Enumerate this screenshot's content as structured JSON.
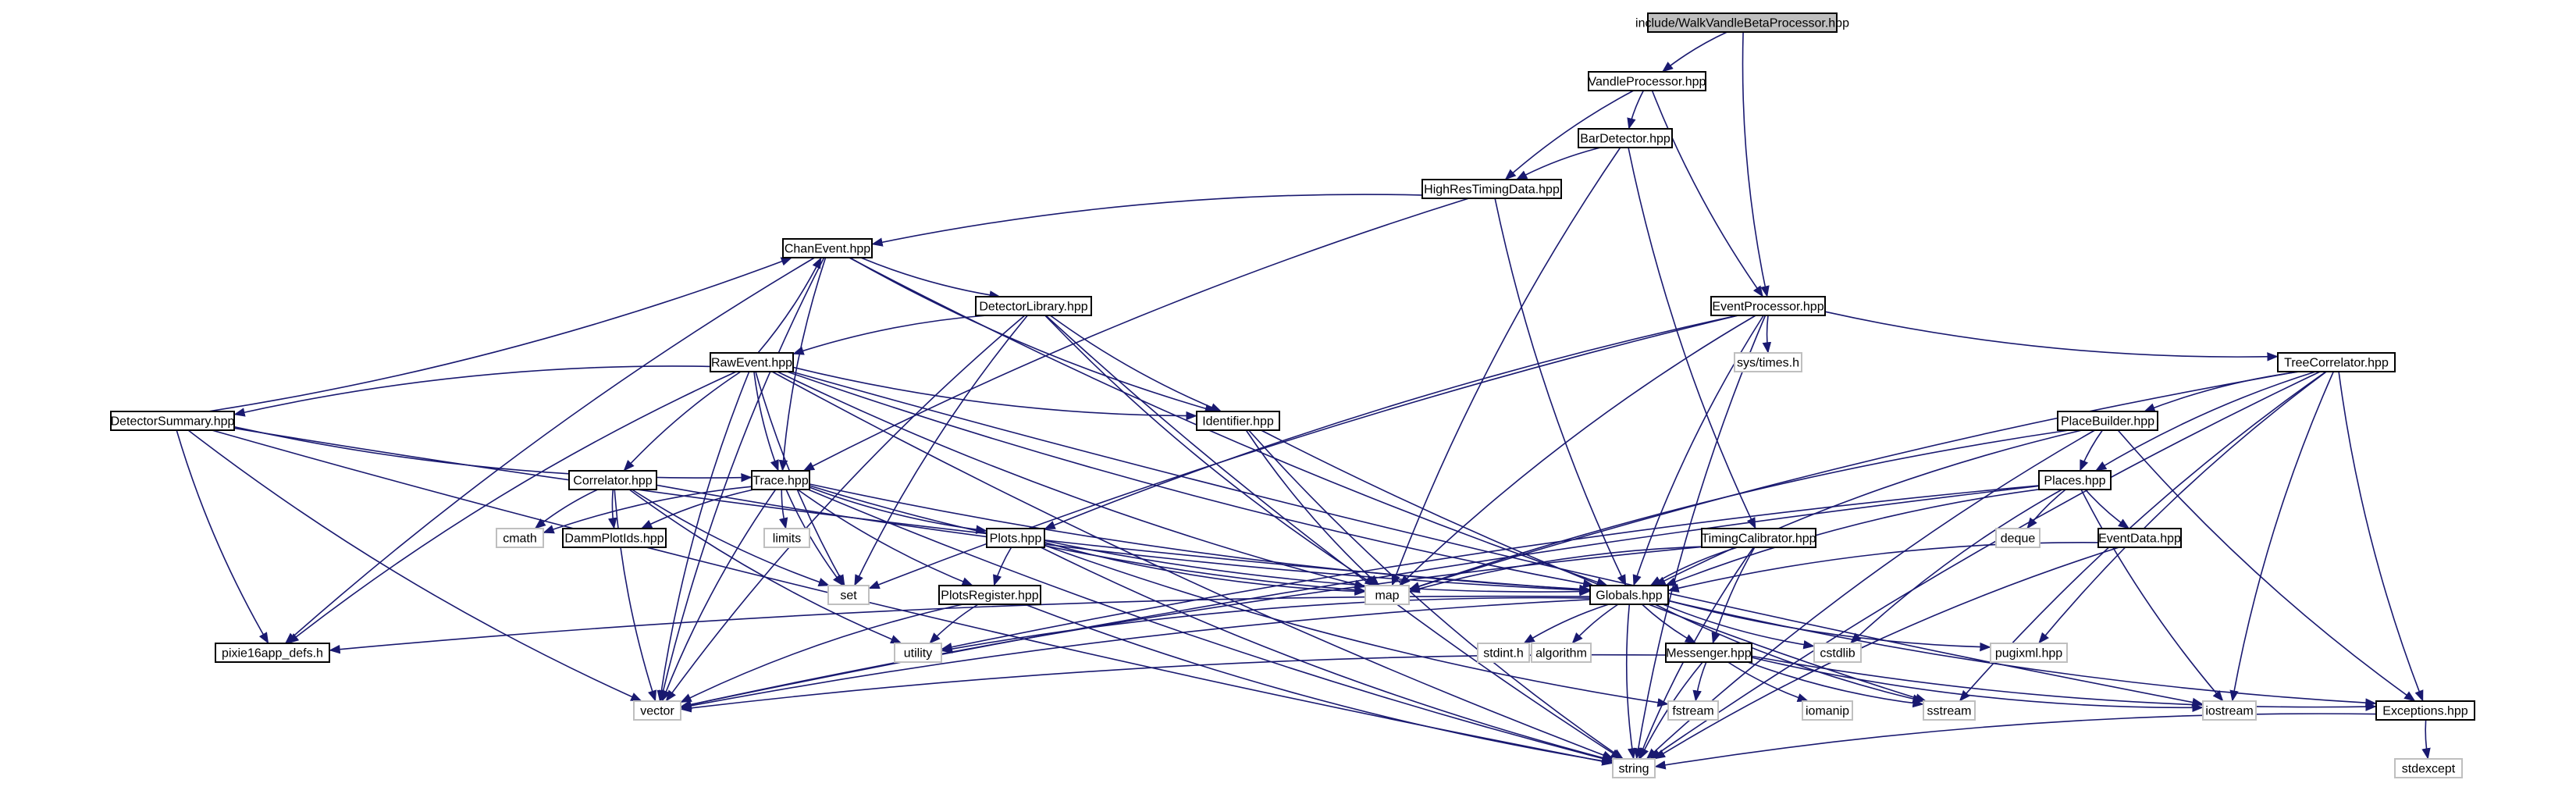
{
  "diagram": {
    "nodes": [
      {
        "id": "walk",
        "label": "include/WalkVandleBetaProcessor.hpp",
        "kind": "root"
      },
      {
        "id": "vandle",
        "label": "VandleProcessor.hpp",
        "kind": "header"
      },
      {
        "id": "bar",
        "label": "BarDetector.hpp",
        "kind": "header"
      },
      {
        "id": "hrt",
        "label": "HighResTimingData.hpp",
        "kind": "header"
      },
      {
        "id": "chan",
        "label": "ChanEvent.hpp",
        "kind": "header"
      },
      {
        "id": "detlib",
        "label": "DetectorLibrary.hpp",
        "kind": "header"
      },
      {
        "id": "raw",
        "label": "RawEvent.hpp",
        "kind": "header"
      },
      {
        "id": "detsum",
        "label": "DetectorSummary.hpp",
        "kind": "header"
      },
      {
        "id": "ident",
        "label": "Identifier.hpp",
        "kind": "header"
      },
      {
        "id": "evproc",
        "label": "EventProcessor.hpp",
        "kind": "header"
      },
      {
        "id": "systimes",
        "label": "sys/times.h",
        "kind": "system"
      },
      {
        "id": "treecorr",
        "label": "TreeCorrelator.hpp",
        "kind": "header"
      },
      {
        "id": "placebuilder",
        "label": "PlaceBuilder.hpp",
        "kind": "header"
      },
      {
        "id": "places",
        "label": "Places.hpp",
        "kind": "header"
      },
      {
        "id": "correlator",
        "label": "Correlator.hpp",
        "kind": "header"
      },
      {
        "id": "trace",
        "label": "Trace.hpp",
        "kind": "header"
      },
      {
        "id": "cmath",
        "label": "cmath",
        "kind": "system"
      },
      {
        "id": "damm",
        "label": "DammPlotIds.hpp",
        "kind": "header"
      },
      {
        "id": "limits",
        "label": "limits",
        "kind": "system"
      },
      {
        "id": "plots",
        "label": "Plots.hpp",
        "kind": "header"
      },
      {
        "id": "timingcal",
        "label": "TimingCalibrator.hpp",
        "kind": "header"
      },
      {
        "id": "deque",
        "label": "deque",
        "kind": "system"
      },
      {
        "id": "eventdata",
        "label": "EventData.hpp",
        "kind": "header"
      },
      {
        "id": "map",
        "label": "map",
        "kind": "system"
      },
      {
        "id": "set",
        "label": "set",
        "kind": "system"
      },
      {
        "id": "plotsreg",
        "label": "PlotsRegister.hpp",
        "kind": "header"
      },
      {
        "id": "globals",
        "label": "Globals.hpp",
        "kind": "header"
      },
      {
        "id": "pixie",
        "label": "pixie16app_defs.h",
        "kind": "header"
      },
      {
        "id": "utility",
        "label": "utility",
        "kind": "system"
      },
      {
        "id": "stdint",
        "label": "stdint.h",
        "kind": "system"
      },
      {
        "id": "algorithm",
        "label": "algorithm",
        "kind": "system"
      },
      {
        "id": "messenger",
        "label": "Messenger.hpp",
        "kind": "header"
      },
      {
        "id": "cstdlib",
        "label": "cstdlib",
        "kind": "system"
      },
      {
        "id": "pugixml",
        "label": "pugixml.hpp",
        "kind": "system"
      },
      {
        "id": "vector",
        "label": "vector",
        "kind": "system"
      },
      {
        "id": "fstream",
        "label": "fstream",
        "kind": "system"
      },
      {
        "id": "iomanip",
        "label": "iomanip",
        "kind": "system"
      },
      {
        "id": "sstream",
        "label": "sstream",
        "kind": "system"
      },
      {
        "id": "iostream",
        "label": "iostream",
        "kind": "system"
      },
      {
        "id": "exceptions",
        "label": "Exceptions.hpp",
        "kind": "header"
      },
      {
        "id": "string",
        "label": "string",
        "kind": "system"
      },
      {
        "id": "stdexcept",
        "label": "stdexcept",
        "kind": "system"
      }
    ],
    "edges": [
      [
        "walk",
        "vandle"
      ],
      [
        "walk",
        "evproc"
      ],
      [
        "vandle",
        "bar"
      ],
      [
        "vandle",
        "hrt"
      ],
      [
        "vandle",
        "evproc"
      ],
      [
        "bar",
        "hrt"
      ],
      [
        "bar",
        "timingcal"
      ],
      [
        "bar",
        "map"
      ],
      [
        "hrt",
        "chan"
      ],
      [
        "hrt",
        "trace"
      ],
      [
        "hrt",
        "globals"
      ],
      [
        "chan",
        "detlib"
      ],
      [
        "chan",
        "ident"
      ],
      [
        "chan",
        "trace"
      ],
      [
        "chan",
        "globals"
      ],
      [
        "chan",
        "pixie"
      ],
      [
        "chan",
        "vector"
      ],
      [
        "detlib",
        "raw"
      ],
      [
        "detlib",
        "ident"
      ],
      [
        "detlib",
        "map"
      ],
      [
        "detlib",
        "set"
      ],
      [
        "detlib",
        "string"
      ],
      [
        "detlib",
        "vector"
      ],
      [
        "raw",
        "chan"
      ],
      [
        "raw",
        "detsum"
      ],
      [
        "raw",
        "ident"
      ],
      [
        "raw",
        "correlator"
      ],
      [
        "raw",
        "trace"
      ],
      [
        "raw",
        "globals"
      ],
      [
        "raw",
        "pixie"
      ],
      [
        "raw",
        "map"
      ],
      [
        "raw",
        "set"
      ],
      [
        "raw",
        "iostream"
      ],
      [
        "raw",
        "vector"
      ],
      [
        "raw",
        "string"
      ],
      [
        "detsum",
        "chan"
      ],
      [
        "detsum",
        "trace"
      ],
      [
        "detsum",
        "globals"
      ],
      [
        "detsum",
        "pixie"
      ],
      [
        "detsum",
        "vector"
      ],
      [
        "detsum",
        "string"
      ],
      [
        "ident",
        "map"
      ],
      [
        "ident",
        "sstream"
      ],
      [
        "ident",
        "string"
      ],
      [
        "evproc",
        "systimes"
      ],
      [
        "evproc",
        "treecorr"
      ],
      [
        "evproc",
        "plots"
      ],
      [
        "evproc",
        "globals"
      ],
      [
        "evproc",
        "map"
      ],
      [
        "evproc",
        "set"
      ],
      [
        "evproc",
        "string"
      ],
      [
        "treecorr",
        "placebuilder"
      ],
      [
        "treecorr",
        "places"
      ],
      [
        "treecorr",
        "map"
      ],
      [
        "treecorr",
        "pugixml"
      ],
      [
        "treecorr",
        "exceptions"
      ],
      [
        "treecorr",
        "sstream"
      ],
      [
        "treecorr",
        "iostream"
      ],
      [
        "treecorr",
        "string"
      ],
      [
        "placebuilder",
        "places"
      ],
      [
        "placebuilder",
        "map"
      ],
      [
        "placebuilder",
        "globals"
      ],
      [
        "placebuilder",
        "exceptions"
      ],
      [
        "placebuilder",
        "string"
      ],
      [
        "places",
        "deque"
      ],
      [
        "places",
        "eventdata"
      ],
      [
        "places",
        "globals"
      ],
      [
        "places",
        "utility"
      ],
      [
        "places",
        "cstdlib"
      ],
      [
        "places",
        "iostream"
      ],
      [
        "places",
        "vector"
      ],
      [
        "correlator",
        "cmath"
      ],
      [
        "correlator",
        "damm"
      ],
      [
        "correlator",
        "globals"
      ],
      [
        "correlator",
        "set"
      ],
      [
        "correlator",
        "vector"
      ],
      [
        "correlator",
        "utility"
      ],
      [
        "trace",
        "cmath"
      ],
      [
        "trace",
        "damm"
      ],
      [
        "trace",
        "limits"
      ],
      [
        "trace",
        "plots"
      ],
      [
        "trace",
        "plotsreg"
      ],
      [
        "trace",
        "globals"
      ],
      [
        "trace",
        "map"
      ],
      [
        "trace",
        "set"
      ],
      [
        "trace",
        "vector"
      ],
      [
        "trace",
        "string"
      ],
      [
        "plots",
        "plotsreg"
      ],
      [
        "plots",
        "globals"
      ],
      [
        "plots",
        "map"
      ],
      [
        "plots",
        "fstream"
      ],
      [
        "plots",
        "string"
      ],
      [
        "timingcal",
        "globals"
      ],
      [
        "timingcal",
        "messenger"
      ],
      [
        "timingcal",
        "map"
      ],
      [
        "timingcal",
        "string"
      ],
      [
        "timingcal",
        "vector"
      ],
      [
        "eventdata",
        "globals"
      ],
      [
        "eventdata",
        "string"
      ],
      [
        "plotsreg",
        "utility"
      ],
      [
        "plotsreg",
        "vector"
      ],
      [
        "plotsreg",
        "string"
      ],
      [
        "globals",
        "pixie"
      ],
      [
        "globals",
        "utility"
      ],
      [
        "globals",
        "stdint"
      ],
      [
        "globals",
        "algorithm"
      ],
      [
        "globals",
        "messenger"
      ],
      [
        "globals",
        "cstdlib"
      ],
      [
        "globals",
        "pugixml"
      ],
      [
        "globals",
        "exceptions"
      ],
      [
        "globals",
        "vector"
      ],
      [
        "globals",
        "sstream"
      ],
      [
        "globals",
        "string"
      ],
      [
        "messenger",
        "vector"
      ],
      [
        "messenger",
        "fstream"
      ],
      [
        "messenger",
        "iomanip"
      ],
      [
        "messenger",
        "sstream"
      ],
      [
        "messenger",
        "iostream"
      ],
      [
        "messenger",
        "exceptions"
      ],
      [
        "messenger",
        "string"
      ],
      [
        "exceptions",
        "stdexcept"
      ],
      [
        "exceptions",
        "string"
      ]
    ]
  }
}
